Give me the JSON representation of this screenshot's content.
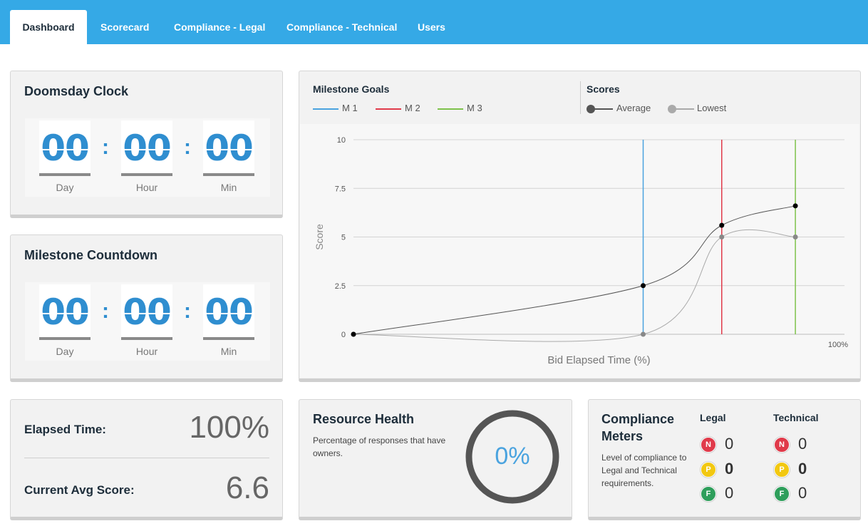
{
  "nav": {
    "tabs": [
      {
        "label": "Dashboard",
        "active": true
      },
      {
        "label": "Scorecard",
        "active": false
      },
      {
        "label": "Compliance - Legal",
        "active": false
      },
      {
        "label": "Compliance - Technical",
        "active": false
      },
      {
        "label": "Users",
        "active": false
      }
    ]
  },
  "doomsday": {
    "title": "Doomsday Clock",
    "units": [
      {
        "value": "00",
        "label": "Day"
      },
      {
        "value": "00",
        "label": "Hour"
      },
      {
        "value": "00",
        "label": "Min"
      }
    ],
    "separator": ":"
  },
  "milestone_countdown": {
    "title": "Milestone Countdown",
    "units": [
      {
        "value": "00",
        "label": "Day"
      },
      {
        "value": "00",
        "label": "Hour"
      },
      {
        "value": "00",
        "label": "Min"
      }
    ],
    "separator": ":"
  },
  "legend": {
    "milestones_title": "Milestone Goals",
    "milestones": [
      {
        "label": "M 1",
        "color": "#4aa3df"
      },
      {
        "label": "M 2",
        "color": "#e03a4a"
      },
      {
        "label": "M 3",
        "color": "#7dc24b"
      }
    ],
    "scores_title": "Scores",
    "scores": [
      {
        "label": "Average",
        "color": "#555555"
      },
      {
        "label": "Lowest",
        "color": "#aaaaaa"
      }
    ]
  },
  "chart_data": {
    "type": "line",
    "ylabel": "Score",
    "xlabel": "Bid Elapsed Time (%)",
    "ylim": [
      0,
      10
    ],
    "xlim": [
      0,
      100
    ],
    "yticks": [
      "0",
      "2.5",
      "5",
      "7.5",
      "10"
    ],
    "ytick_values": [
      0,
      2.5,
      5,
      7.5,
      10
    ],
    "xtick_label": "100%",
    "milestones": [
      {
        "name": "M 1",
        "x": 59,
        "color": "#4aa3df"
      },
      {
        "name": "M 2",
        "x": 75,
        "color": "#e03a4a"
      },
      {
        "name": "M 3",
        "x": 90,
        "color": "#7dc24b"
      }
    ],
    "series": [
      {
        "name": "Average",
        "color": "#555555",
        "marker": "#000000",
        "points": [
          [
            0,
            0
          ],
          [
            59,
            2.5
          ],
          [
            75,
            5.6
          ],
          [
            90,
            6.6
          ]
        ]
      },
      {
        "name": "Lowest",
        "color": "#aaaaaa",
        "marker": "#888888",
        "points": [
          [
            0,
            0
          ],
          [
            59,
            0
          ],
          [
            75,
            5
          ],
          [
            90,
            5
          ]
        ]
      }
    ],
    "grid": true
  },
  "stats": {
    "elapsed_label": "Elapsed Time:",
    "elapsed_value": "100%",
    "avg_label": "Current Avg Score:",
    "avg_value": "6.6"
  },
  "resource_health": {
    "title": "Resource Health",
    "description": "Percentage of responses that have owners.",
    "percent": "0%",
    "fraction": 0
  },
  "compliance": {
    "title_line1": "Compliance",
    "title_line2": "Meters",
    "description": "Level of compliance to Legal and Technical requirements.",
    "columns": [
      {
        "label": "Legal",
        "rows": [
          {
            "badge": "N",
            "value": "0",
            "color": "#e03a4a"
          },
          {
            "badge": "P",
            "value": "0",
            "color": "#f2c811"
          },
          {
            "badge": "F",
            "value": "0",
            "color": "#2e9e5b"
          }
        ]
      },
      {
        "label": "Technical",
        "rows": [
          {
            "badge": "N",
            "value": "0",
            "color": "#e03a4a"
          },
          {
            "badge": "P",
            "value": "0",
            "color": "#f2c811"
          },
          {
            "badge": "F",
            "value": "0",
            "color": "#2e9e5b"
          }
        ]
      }
    ]
  }
}
